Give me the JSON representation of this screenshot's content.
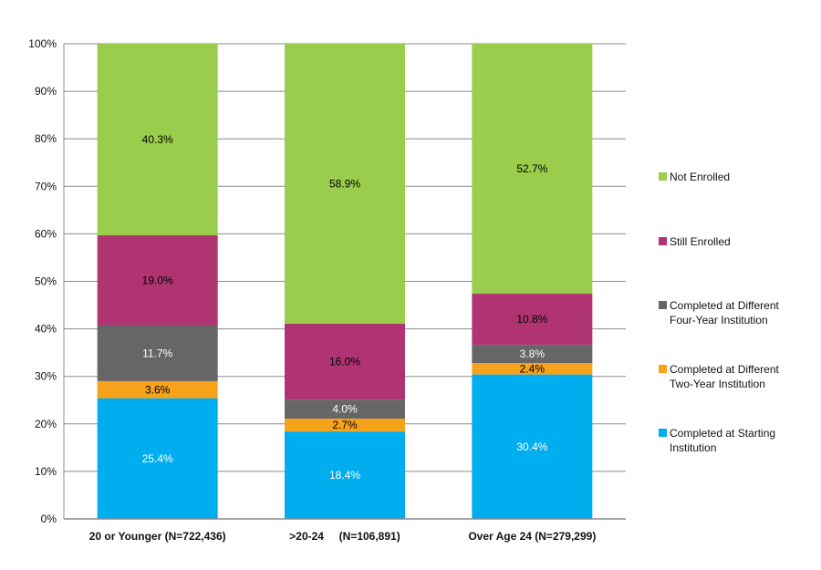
{
  "chart_data": {
    "type": "bar",
    "stacked": true,
    "title": "",
    "xlabel": "",
    "ylabel": "",
    "ylim": [
      0,
      100
    ],
    "yticks": [
      "0%",
      "10%",
      "20%",
      "30%",
      "40%",
      "50%",
      "60%",
      "70%",
      "80%",
      "90%",
      "100%"
    ],
    "grid": true,
    "legend_position": "right",
    "categories": [
      "20 or Younger (N=722,436)",
      ">20-24     (N=106,891)",
      "Over Age 24 (N=279,299)"
    ],
    "series": [
      {
        "name": "Completed at Starting Institution",
        "color": "#00AEEF",
        "label_color": "#ffffff",
        "values": [
          25.4,
          18.4,
          30.4
        ],
        "labels": [
          "25.4%",
          "18.4%",
          "30.4%"
        ]
      },
      {
        "name": "Completed at Different Two-Year Institution",
        "color": "#F7A21B",
        "label_color": "#000000",
        "values": [
          3.6,
          2.7,
          2.4
        ],
        "labels": [
          "3.6%",
          "2.7%",
          "2.4%"
        ]
      },
      {
        "name": "Completed at Different Four-Year Institution",
        "color": "#666666",
        "label_color": "#ffffff",
        "values": [
          11.7,
          4.0,
          3.8
        ],
        "labels": [
          "11.7%",
          "4.0%",
          "3.8%"
        ]
      },
      {
        "name": "Still Enrolled",
        "color": "#B03472",
        "label_color": "#000000",
        "values": [
          19.0,
          16.0,
          10.8
        ],
        "labels": [
          "19.0%",
          "16.0%",
          "10.8%"
        ]
      },
      {
        "name": "Not Enrolled",
        "color": "#9ACD4C",
        "label_color": "#000000",
        "values": [
          40.3,
          58.9,
          52.7
        ],
        "labels": [
          "40.3%",
          "58.9%",
          "52.7%"
        ]
      }
    ],
    "legend": [
      {
        "line1": "Not Enrolled",
        "line2": ""
      },
      {
        "line1": "Still Enrolled",
        "line2": ""
      },
      {
        "line1": "Completed at Different",
        "line2": "Four-Year Institution"
      },
      {
        "line1": "Completed at Different",
        "line2": "Two-Year Institution"
      },
      {
        "line1": "Completed at Starting",
        "line2": "Institution"
      }
    ]
  }
}
